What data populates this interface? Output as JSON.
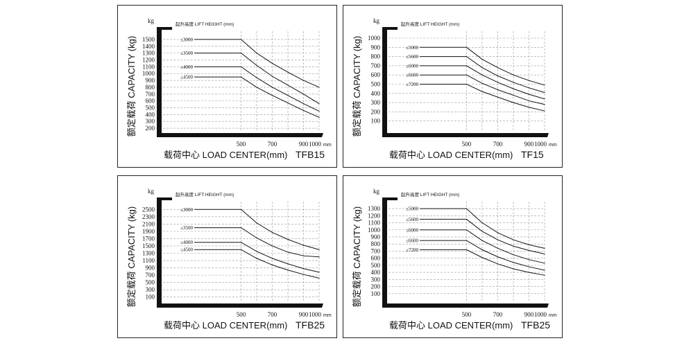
{
  "chart_data": [
    {
      "type": "line",
      "model": "TFB15",
      "ylabel": "额定载荷 CAPACITY (kg)",
      "xlabel": "载荷中心   LOAD CENTER(mm)",
      "yunit": "kg",
      "xunit": "mm",
      "lift_height_title": "起升高度 LIFT HEIGHT (mm)",
      "xticks": [
        500,
        700,
        900,
        1000
      ],
      "yticks": [
        200,
        300,
        400,
        500,
        600,
        700,
        800,
        900,
        1000,
        1100,
        1200,
        1300,
        1400,
        1500
      ],
      "xlim": [
        0,
        1000
      ],
      "ylim": [
        170,
        1560
      ],
      "grid": true,
      "series": [
        {
          "name": "≤3000",
          "x": [
            0,
            500,
            600,
            700,
            800,
            900,
            1000
          ],
          "y": [
            1500,
            1500,
            1300,
            1150,
            1020,
            900,
            800
          ]
        },
        {
          "name": "≤3500",
          "x": [
            0,
            500,
            600,
            700,
            800,
            900,
            1000
          ],
          "y": [
            1300,
            1300,
            1120,
            960,
            830,
            700,
            560
          ]
        },
        {
          "name": "≤4000",
          "x": [
            0,
            500,
            600,
            700,
            800,
            900,
            1000
          ],
          "y": [
            1100,
            1100,
            940,
            800,
            680,
            560,
            450
          ]
        },
        {
          "name": "≤4500",
          "x": [
            0,
            500,
            600,
            700,
            800,
            900,
            1000
          ],
          "y": [
            950,
            950,
            800,
            680,
            570,
            460,
            360
          ]
        }
      ]
    },
    {
      "type": "line",
      "model": "TF15",
      "ylabel": "额定载荷 CAPACITY (kg)",
      "xlabel": "载荷中心   LOAD CENTER(mm)",
      "yunit": "kg",
      "xunit": "mm",
      "lift_height_title": "起升高度 LIFT HEIGHT (mm)",
      "xticks": [
        500,
        700,
        900,
        1000
      ],
      "yticks": [
        100,
        200,
        300,
        400,
        500,
        600,
        700,
        800,
        900,
        1000
      ],
      "xlim": [
        0,
        1000
      ],
      "ylim": [
        0,
        1030
      ],
      "grid": true,
      "series": [
        {
          "name": "≤5000",
          "x": [
            0,
            500,
            600,
            700,
            800,
            900,
            1000
          ],
          "y": [
            900,
            900,
            770,
            680,
            600,
            540,
            490
          ]
        },
        {
          "name": "≤5600",
          "x": [
            0,
            500,
            600,
            700,
            800,
            900,
            1000
          ],
          "y": [
            800,
            800,
            680,
            590,
            520,
            460,
            410
          ]
        },
        {
          "name": "≤6000",
          "x": [
            0,
            500,
            600,
            700,
            800,
            900,
            1000
          ],
          "y": [
            700,
            700,
            600,
            520,
            450,
            390,
            340
          ]
        },
        {
          "name": "≤6600",
          "x": [
            0,
            500,
            600,
            700,
            800,
            900,
            1000
          ],
          "y": [
            600,
            600,
            510,
            440,
            380,
            320,
            280
          ]
        },
        {
          "name": "≤7200",
          "x": [
            0,
            500,
            600,
            700,
            800,
            900,
            1000
          ],
          "y": [
            500,
            500,
            420,
            360,
            300,
            250,
            210
          ]
        }
      ]
    },
    {
      "type": "line",
      "model": "TFB25",
      "ylabel": "额定载荷 CAPACITY (kg)",
      "xlabel": "载荷中心   LOAD CENTER(mm)",
      "yunit": "kg",
      "xunit": "mm",
      "lift_height_title": "起升高度 LIFT HEIGHT (mm)",
      "xticks": [
        500,
        700,
        900,
        1000
      ],
      "yticks": [
        100,
        300,
        500,
        700,
        900,
        1100,
        1300,
        1500,
        1700,
        1900,
        2100,
        2300,
        2500
      ],
      "xlim": [
        0,
        1000
      ],
      "ylim": [
        0,
        2600
      ],
      "grid": true,
      "series": [
        {
          "name": "≤3000",
          "x": [
            0,
            500,
            600,
            700,
            800,
            900,
            1000
          ],
          "y": [
            2500,
            2500,
            2130,
            1870,
            1680,
            1520,
            1400
          ]
        },
        {
          "name": "≤3500",
          "x": [
            0,
            500,
            600,
            700,
            800,
            900,
            1000
          ],
          "y": [
            2000,
            2000,
            1720,
            1500,
            1330,
            1230,
            1200
          ]
        },
        {
          "name": "≤4000",
          "x": [
            0,
            500,
            600,
            700,
            800,
            900,
            1000
          ],
          "y": [
            1600,
            1600,
            1350,
            1160,
            1010,
            880,
            780
          ]
        },
        {
          "name": "≤4500",
          "x": [
            0,
            500,
            600,
            700,
            800,
            900,
            1000
          ],
          "y": [
            1400,
            1400,
            1160,
            980,
            840,
            720,
            620
          ]
        }
      ]
    },
    {
      "type": "line",
      "model": "TFB25",
      "ylabel": "额定载荷 CAPACITY (kg)",
      "xlabel": "载荷中心   LOAD CENTER(mm)",
      "yunit": "kg",
      "xunit": "mm",
      "lift_height_title": "起升高度 LIFT HEIGHT (mm)",
      "xticks": [
        500,
        700,
        900,
        1000
      ],
      "yticks": [
        100,
        200,
        300,
        400,
        500,
        600,
        700,
        800,
        900,
        1000,
        1100,
        1200,
        1300
      ],
      "xlim": [
        0,
        1000
      ],
      "ylim": [
        0,
        1340
      ],
      "grid": true,
      "series": [
        {
          "name": "≤5000",
          "x": [
            0,
            500,
            600,
            700,
            800,
            900,
            1000
          ],
          "y": [
            1300,
            1300,
            1100,
            960,
            860,
            790,
            740
          ]
        },
        {
          "name": "≤5600",
          "x": [
            0,
            500,
            600,
            700,
            800,
            900,
            1000
          ],
          "y": [
            1150,
            1150,
            980,
            860,
            770,
            710,
            660
          ]
        },
        {
          "name": "≤6000",
          "x": [
            0,
            500,
            600,
            700,
            800,
            900,
            1000
          ],
          "y": [
            1000,
            1000,
            850,
            740,
            650,
            580,
            530
          ]
        },
        {
          "name": "≤6600",
          "x": [
            0,
            500,
            600,
            700,
            800,
            900,
            1000
          ],
          "y": [
            850,
            850,
            720,
            620,
            540,
            480,
            430
          ]
        },
        {
          "name": "≤7200",
          "x": [
            0,
            500,
            600,
            700,
            800,
            900,
            1000
          ],
          "y": [
            720,
            720,
            610,
            520,
            450,
            400,
            360
          ]
        }
      ]
    }
  ]
}
